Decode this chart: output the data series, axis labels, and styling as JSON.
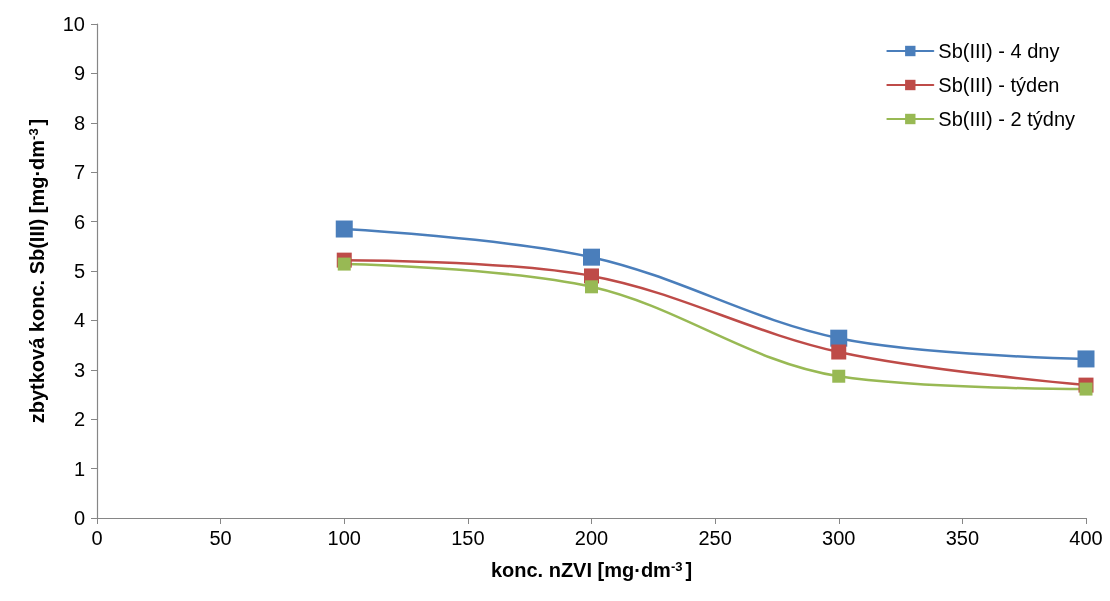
{
  "chart_data": {
    "type": "line",
    "xlabel": "konc. nZVI [mg·dm$^{-3}$]",
    "ylabel": "zbytková konc. Sb(III) [mg·dm$^{-3}$]",
    "x": [
      100,
      200,
      300,
      400
    ],
    "series": [
      {
        "name": "Sb(III) - 4 dny",
        "color": "#4a7ebb",
        "values": [
          5.85,
          5.28,
          3.64,
          3.22
        ]
      },
      {
        "name": "Sb(III) - týden",
        "color": "#be4b48",
        "values": [
          5.22,
          4.9,
          3.36,
          2.69
        ]
      },
      {
        "name": "Sb(III) - 2 týdny",
        "color": "#98b954",
        "values": [
          5.14,
          4.68,
          2.87,
          2.61
        ]
      }
    ],
    "xlim": [
      0,
      400
    ],
    "xticks": [
      0,
      50,
      100,
      150,
      200,
      250,
      300,
      350,
      400
    ],
    "ylim": [
      0,
      10
    ],
    "yticks": [
      0,
      1,
      2,
      3,
      4,
      5,
      6,
      7,
      8,
      9,
      10
    ],
    "grid": false,
    "legend": "top right",
    "marker": "square",
    "line_style": "solid"
  }
}
